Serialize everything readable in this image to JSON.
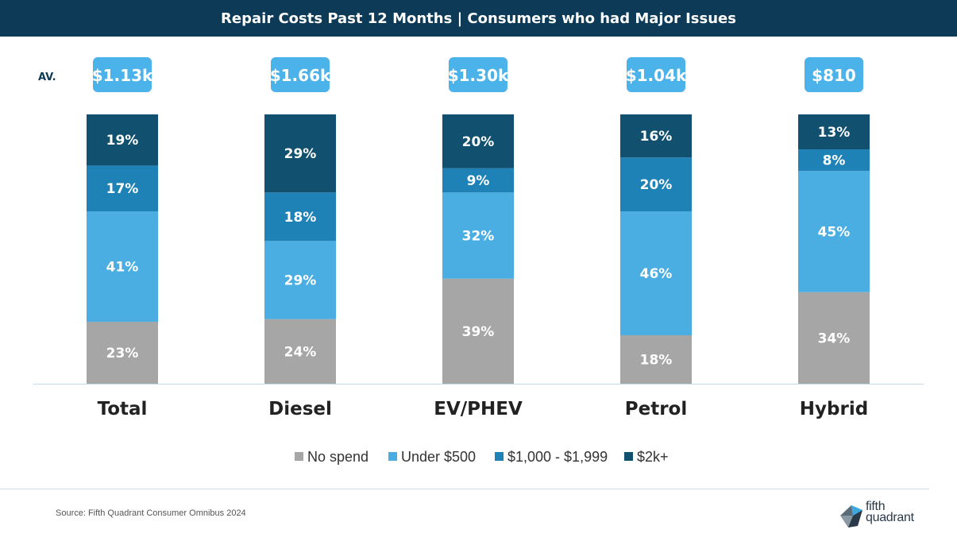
{
  "header": {
    "title": "Repair Costs Past 12 Months | Consumers who had Major Issues"
  },
  "average_label": "AV.",
  "averages": [
    "$1.13k",
    "$1.66k",
    "$1.30k",
    "$1.04k",
    "$810"
  ],
  "footer": {
    "source": "Source: Fifth Quadrant Consumer Omnibus 2024",
    "logo_text_top": "fifth",
    "logo_text_bottom": "quadrant"
  },
  "colors": {
    "header_bg": "#0d3a57",
    "no_spend": "#a6a6a6",
    "under_500": "#4aaee3",
    "mid": "#1f82b6",
    "top": "#12506f",
    "avg_badge": "#4cb3ea"
  },
  "chart_data": {
    "type": "bar",
    "stacked": true,
    "categories": [
      "Total",
      "Diesel",
      "EV/PHEV",
      "Petrol",
      "Hybrid"
    ],
    "series": [
      {
        "name": "No spend",
        "values": [
          23,
          24,
          39,
          18,
          34
        ],
        "labels": [
          "23%",
          "24%",
          "39%",
          "18%",
          "34%"
        ]
      },
      {
        "name": "Under $500",
        "values": [
          41,
          29,
          32,
          46,
          45
        ],
        "labels": [
          "41%",
          "29%",
          "32%",
          "46%",
          "45%"
        ]
      },
      {
        "name": "$1,000 - $1,999",
        "values": [
          17,
          18,
          9,
          20,
          8
        ],
        "labels": [
          "17%",
          "18%",
          "9%",
          "20%",
          "8%"
        ]
      },
      {
        "name": "$2k+",
        "values": [
          19,
          29,
          20,
          16,
          13
        ],
        "labels": [
          "19%",
          "29%",
          "20%",
          "16%",
          "13%"
        ]
      }
    ],
    "legend_position": "bottom",
    "grid": false
  }
}
